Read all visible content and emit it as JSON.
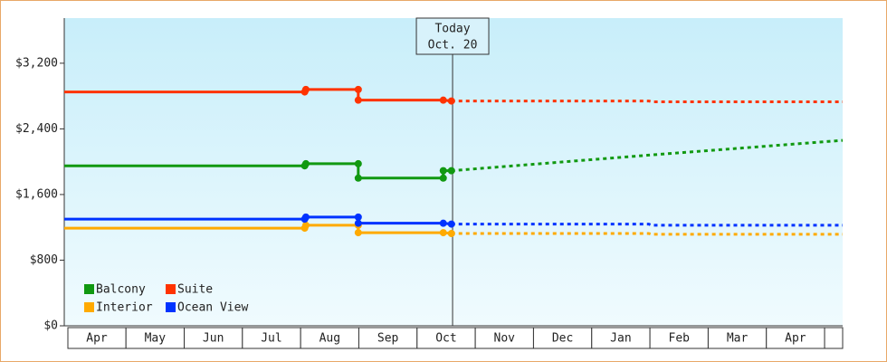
{
  "chart_data": {
    "type": "line",
    "xticks": [
      {
        "value": 0.5,
        "label": "Apr"
      },
      {
        "value": 1.5,
        "label": "May"
      },
      {
        "value": 2.5,
        "label": "Jun"
      },
      {
        "value": 3.5,
        "label": "Jul"
      },
      {
        "value": 4.5,
        "label": "Aug"
      },
      {
        "value": 5.5,
        "label": "Sep"
      },
      {
        "value": 6.5,
        "label": "Oct"
      },
      {
        "value": 7.5,
        "label": "Nov"
      },
      {
        "value": 8.5,
        "label": "Dec"
      },
      {
        "value": 9.5,
        "label": "Jan"
      },
      {
        "value": 10.5,
        "label": "Feb"
      },
      {
        "value": 11.5,
        "label": "Mar"
      },
      {
        "value": 12.5,
        "label": "Apr"
      }
    ],
    "xlim": [
      -0.06,
      13.31
    ],
    "ylim": [
      0,
      3750
    ],
    "yticks": [
      {
        "value": 0,
        "label": "$0"
      },
      {
        "value": 800,
        "label": "$800"
      },
      {
        "value": 1600,
        "label": "$1,600"
      },
      {
        "value": 2400,
        "label": "$2,400"
      },
      {
        "value": 3200,
        "label": "$3,200"
      }
    ],
    "today": {
      "x": 6.61,
      "label": "Today",
      "date": "Oct. 20"
    },
    "legend": "bottom-left",
    "series": [
      {
        "name": "Balcony",
        "color": "#119911",
        "x": [
          -0.06,
          4.07,
          4.09,
          4.99,
          4.99,
          6.45,
          6.45,
          6.59
        ],
        "values": [
          1950,
          1950,
          1975,
          1975,
          1800,
          1800,
          1890,
          1890
        ],
        "forecast_x": [
          6.59,
          9.98,
          13.31
        ],
        "forecast_values": [
          1890,
          2080,
          2260
        ]
      },
      {
        "name": "Suite",
        "color": "#ff3300",
        "x": [
          -0.06,
          4.07,
          4.09,
          4.99,
          4.99,
          6.45,
          6.59
        ],
        "values": [
          2850,
          2850,
          2880,
          2880,
          2750,
          2750,
          2740
        ],
        "forecast_x": [
          6.59,
          9.98,
          10.03,
          13.31
        ],
        "forecast_values": [
          2740,
          2740,
          2730,
          2730
        ]
      },
      {
        "name": "Interior",
        "color": "#ffaa00",
        "x": [
          -0.06,
          4.07,
          4.09,
          4.99,
          4.99,
          6.45,
          6.59
        ],
        "values": [
          1190,
          1190,
          1225,
          1225,
          1135,
          1135,
          1125
        ],
        "forecast_x": [
          6.59,
          9.98,
          10.03,
          13.31
        ],
        "forecast_values": [
          1125,
          1125,
          1115,
          1115
        ]
      },
      {
        "name": "Ocean View",
        "color": "#0033ff",
        "x": [
          -0.06,
          4.07,
          4.09,
          4.99,
          4.99,
          6.45,
          6.59
        ],
        "values": [
          1300,
          1300,
          1325,
          1325,
          1250,
          1250,
          1240
        ],
        "forecast_x": [
          6.59,
          9.98,
          10.03,
          13.31
        ],
        "forecast_values": [
          1240,
          1240,
          1225,
          1225
        ]
      }
    ]
  }
}
